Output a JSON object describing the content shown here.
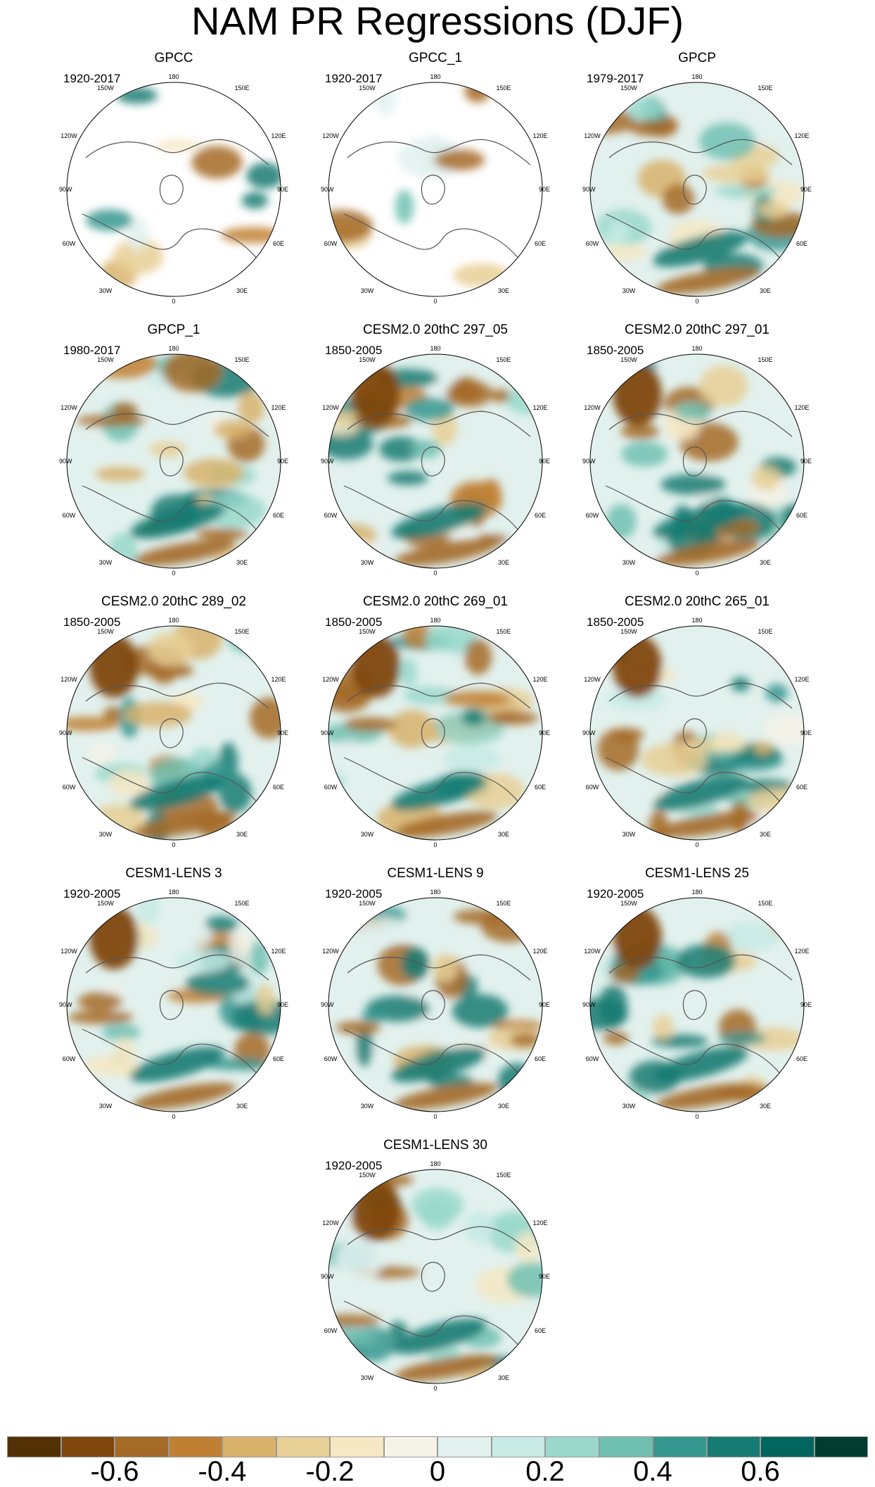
{
  "title": "NAM PR Regressions (DJF)",
  "panels": [
    {
      "title": "GPCC",
      "period": "1920-2017"
    },
    {
      "title": "GPCC_1",
      "period": "1920-2017"
    },
    {
      "title": "GPCP",
      "period": "1979-2017"
    },
    {
      "title": "GPCP_1",
      "period": "1980-2017"
    },
    {
      "title": "CESM2.0 20thC 297_05",
      "period": "1850-2005"
    },
    {
      "title": "CESM2.0 20thC 297_01",
      "period": "1850-2005"
    },
    {
      "title": "CESM2.0 20thC 289_02",
      "period": "1850-2005"
    },
    {
      "title": "CESM2.0 20thC 269_01",
      "period": "1850-2005"
    },
    {
      "title": "CESM2.0 20thC 265_01",
      "period": "1850-2005"
    },
    {
      "title": "CESM1-LENS 3",
      "period": "1920-2005"
    },
    {
      "title": "CESM1-LENS 9",
      "period": "1920-2005"
    },
    {
      "title": "CESM1-LENS 25",
      "period": "1920-2005"
    },
    {
      "title": "CESM1-LENS 30",
      "period": "1920-2005"
    }
  ],
  "longitude_labels": {
    "top": "180",
    "bottom": "0",
    "left": "90W",
    "right": "90E",
    "upper_left_1": "150W",
    "upper_left_2": "120W",
    "upper_right_1": "150E",
    "upper_right_2": "120E",
    "lower_left_1": "60W",
    "lower_left_2": "30W",
    "lower_right_1": "60E",
    "lower_right_2": "30E"
  },
  "colorbar": {
    "colors": [
      "#543005",
      "#7f470d",
      "#a46a27",
      "#c08033",
      "#d8b26b",
      "#e7cf95",
      "#f6e8c3",
      "#f5f2e8",
      "#e2f1ee",
      "#c7eae5",
      "#99d8cb",
      "#70c0b2",
      "#35978f",
      "#167b72",
      "#01665e",
      "#003c30"
    ],
    "labels": [
      "-0.6",
      "-0.4",
      "-0.2",
      "0",
      "0.2",
      "0.4",
      "0.6"
    ],
    "min": -0.8,
    "max": 0.8
  }
}
